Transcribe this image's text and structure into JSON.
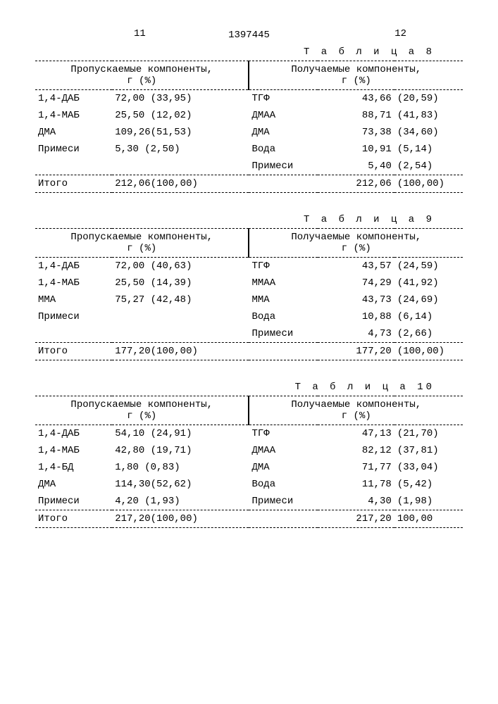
{
  "page_left_num": "11",
  "page_right_num": "12",
  "doc_number": "1397445",
  "col_head_left": "Пропускаемые компоненты,\nг (%)",
  "col_head_right": "Получаемые компоненты,\nг (%)",
  "tables": [
    {
      "caption": "Т а б л и ц а 8",
      "left_rows": [
        {
          "name": "1,4-ДАБ",
          "val": "72,00",
          "pct": "(33,95)"
        },
        {
          "name": "1,4-МАБ",
          "val": "25,50",
          "pct": "(12,02)"
        },
        {
          "name": "ДМА",
          "val": "109,26",
          "pct": "(51,53)"
        },
        {
          "name": "Примеси",
          "val": "5,30",
          "pct": "(2,50)"
        }
      ],
      "right_rows": [
        {
          "name": "ТГФ",
          "val": "43,66",
          "pct": "(20,59)"
        },
        {
          "name": "ДМАА",
          "val": "88,71",
          "pct": "(41,83)"
        },
        {
          "name": "ДМА",
          "val": "73,38",
          "pct": "(34,60)"
        },
        {
          "name": "Вода",
          "val": "10,91",
          "pct": "(5,14)"
        },
        {
          "name": "Примеси",
          "val": "5,40",
          "pct": "(2,54)"
        }
      ],
      "left_total": {
        "name": "Итого",
        "val": "212,06",
        "pct": "(100,00)"
      },
      "right_total": {
        "val": "212,06",
        "pct": "(100,00)"
      }
    },
    {
      "caption": "Т а б л и ц а 9",
      "left_rows": [
        {
          "name": "1,4-ДАБ",
          "val": "72,00",
          "pct": "(40,63)"
        },
        {
          "name": "1,4-МАБ",
          "val": "25,50",
          "pct": "(14,39)"
        },
        {
          "name": "ММА",
          "val": "75,27",
          "pct": "(42,48)"
        },
        {
          "name": "Примеси",
          "val": "",
          "pct": ""
        }
      ],
      "right_rows": [
        {
          "name": "ТГФ",
          "val": "43,57",
          "pct": "(24,59)"
        },
        {
          "name": "ММАА",
          "val": "74,29",
          "pct": "(41,92)"
        },
        {
          "name": "ММА",
          "val": "43,73",
          "pct": "(24,69)"
        },
        {
          "name": "Вода",
          "val": "10,88",
          "pct": "(6,14)"
        },
        {
          "name": "Примеси",
          "val": "4,73",
          "pct": "(2,66)"
        }
      ],
      "left_total": {
        "name": "Итого",
        "val": "177,20",
        "pct": "(100,00)"
      },
      "right_total": {
        "val": "177,20",
        "pct": "(100,00)"
      }
    },
    {
      "caption": "Т а б л и ц а  10",
      "left_rows": [
        {
          "name": "1,4-ДАБ",
          "val": "54,10",
          "pct": "(24,91)"
        },
        {
          "name": "1,4-МАБ",
          "val": "42,80",
          "pct": "(19,71)"
        },
        {
          "name": "1,4-БД",
          "val": "1,80",
          "pct": "(0,83)"
        },
        {
          "name": "ДМА",
          "val": "114,30",
          "pct": "(52,62)"
        },
        {
          "name": "Примеси",
          "val": "4,20",
          "pct": "(1,93)"
        }
      ],
      "right_rows": [
        {
          "name": "ТГФ",
          "val": "47,13",
          "pct": "(21,70)"
        },
        {
          "name": "ДМАА",
          "val": "82,12",
          "pct": "(37,81)"
        },
        {
          "name": "ДМА",
          "val": "71,77",
          "pct": "(33,04)"
        },
        {
          "name": "Вода",
          "val": "11,78",
          "pct": "(5,42)"
        },
        {
          "name": "Примеси",
          "val": "4,30",
          "pct": "(1,98)"
        }
      ],
      "left_total": {
        "name": "Итого",
        "val": "217,20",
        "pct": "(100,00)"
      },
      "right_total": {
        "val": "217,20",
        "pct": "100,00"
      }
    }
  ]
}
